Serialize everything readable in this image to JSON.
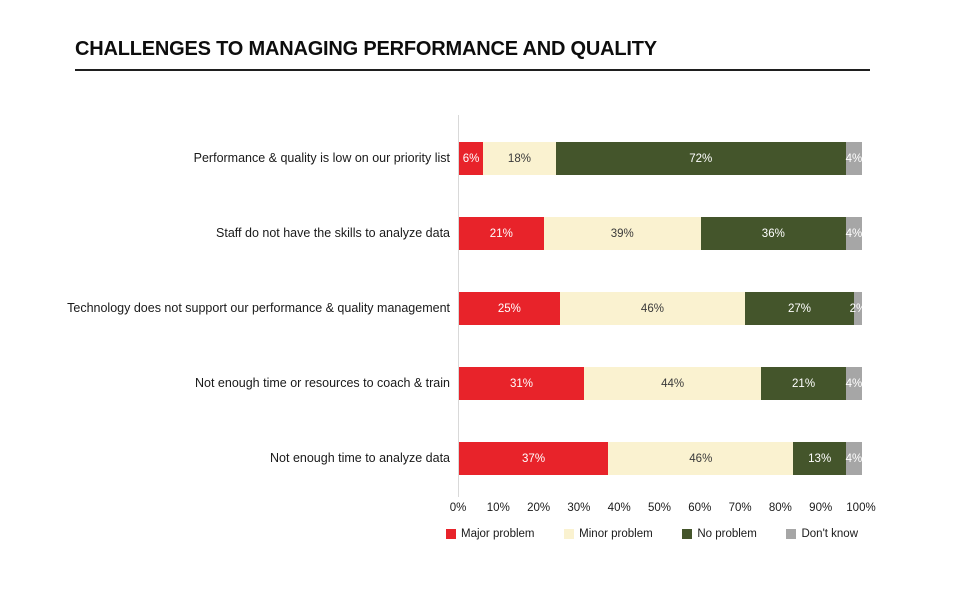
{
  "title": "CHALLENGES TO MANAGING PERFORMANCE AND QUALITY",
  "colors": {
    "major_problem": "#E8232A",
    "minor_problem": "#FAF2D0",
    "no_problem": "#44552B",
    "dont_know": "#A6A6A6",
    "axis_line": "#D9D9D9",
    "title_rule": "#1F1F1F"
  },
  "chart_data": {
    "type": "bar",
    "orientation": "horizontal",
    "stacked": true,
    "title": "CHALLENGES TO MANAGING PERFORMANCE AND QUALITY",
    "xlabel": "",
    "ylabel": "",
    "xlim": [
      0,
      100
    ],
    "grid": false,
    "legend_position": "bottom",
    "value_suffix": "%",
    "categories": [
      "Performance & quality is low on our priority list",
      "Staff do not have the skills to analyze data",
      "Technology does not support our performance & quality management",
      "Not enough time or resources to coach & train",
      "Not enough time to analyze data"
    ],
    "series": [
      {
        "name": "Major problem",
        "color": "#E8232A",
        "label_color": "#FFFFFF",
        "values": [
          6,
          21,
          25,
          31,
          37
        ]
      },
      {
        "name": "Minor problem",
        "color": "#FAF2D0",
        "label_color": "#3A3A3A",
        "values": [
          18,
          39,
          46,
          44,
          46
        ]
      },
      {
        "name": "No problem",
        "color": "#44552B",
        "label_color": "#FFFFFF",
        "values": [
          72,
          36,
          27,
          21,
          13
        ]
      },
      {
        "name": "Don't know",
        "color": "#A6A6A6",
        "label_color": "#FFFFFF",
        "values": [
          4,
          4,
          2,
          4,
          4
        ]
      }
    ],
    "x_ticks": [
      "0%",
      "10%",
      "20%",
      "30%",
      "40%",
      "50%",
      "60%",
      "70%",
      "80%",
      "90%",
      "100%"
    ],
    "data_labels": [
      [
        "6%",
        "18%",
        "72%",
        "4%"
      ],
      [
        "21%",
        "39%",
        "36%",
        "4%"
      ],
      [
        "25%",
        "46%",
        "27%",
        "2%"
      ],
      [
        "31%",
        "44%",
        "21%",
        "4%"
      ],
      [
        "37%",
        "46%",
        "13%",
        "4%"
      ]
    ]
  },
  "legend": {
    "items": [
      "Major problem",
      "Minor problem",
      "No problem",
      "Don't know"
    ]
  }
}
